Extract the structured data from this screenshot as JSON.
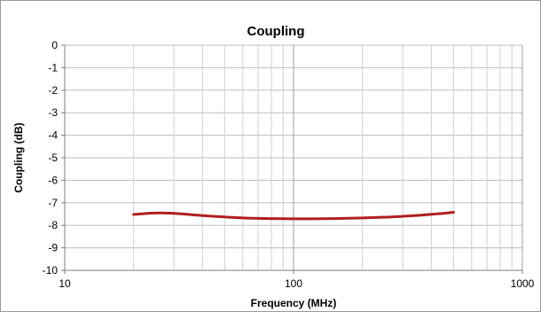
{
  "chart_data": {
    "type": "line",
    "title": "Coupling",
    "xlabel": "Frequency (MHz)",
    "ylabel": "Coupling (dB)",
    "x_scale": "log",
    "xlim": [
      10,
      1000
    ],
    "ylim": [
      -10,
      0
    ],
    "x_ticks": [
      "10",
      "100",
      "1000"
    ],
    "y_ticks": [
      "0",
      "-1",
      "-2",
      "-3",
      "-4",
      "-5",
      "-6",
      "-7",
      "-8",
      "-9",
      "-10"
    ],
    "grid": true,
    "legend": "none",
    "series": [
      {
        "color": "#b01e1e",
        "points": [
          {
            "x": 20,
            "y": -7.52
          },
          {
            "x": 23,
            "y": -7.47
          },
          {
            "x": 26,
            "y": -7.45
          },
          {
            "x": 30,
            "y": -7.47
          },
          {
            "x": 35,
            "y": -7.52
          },
          {
            "x": 40,
            "y": -7.57
          },
          {
            "x": 50,
            "y": -7.63
          },
          {
            "x": 60,
            "y": -7.67
          },
          {
            "x": 70,
            "y": -7.69
          },
          {
            "x": 80,
            "y": -7.7
          },
          {
            "x": 100,
            "y": -7.71
          },
          {
            "x": 120,
            "y": -7.71
          },
          {
            "x": 150,
            "y": -7.7
          },
          {
            "x": 200,
            "y": -7.67
          },
          {
            "x": 250,
            "y": -7.64
          },
          {
            "x": 300,
            "y": -7.6
          },
          {
            "x": 350,
            "y": -7.56
          },
          {
            "x": 400,
            "y": -7.51
          },
          {
            "x": 450,
            "y": -7.47
          },
          {
            "x": 500,
            "y": -7.42
          }
        ]
      }
    ]
  }
}
